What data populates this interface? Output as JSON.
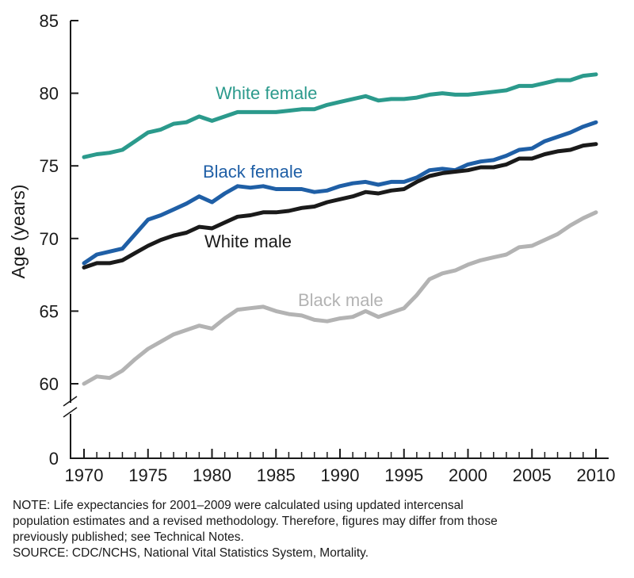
{
  "chart_data": {
    "type": "line",
    "ylabel": "Age (years)",
    "xlabel": "",
    "x_ticks": [
      "1970",
      "1975",
      "1980",
      "1985",
      "1990",
      "1995",
      "2000",
      "2005",
      "2010"
    ],
    "y_ticks": [
      "0",
      "60",
      "65",
      "70",
      "75",
      "80",
      "85"
    ],
    "ylim": [
      60,
      85
    ],
    "y_axis_break": true,
    "grid": false,
    "legend": "inline labels",
    "x": [
      1970,
      1971,
      1972,
      1973,
      1974,
      1975,
      1976,
      1977,
      1978,
      1979,
      1980,
      1981,
      1982,
      1983,
      1984,
      1985,
      1986,
      1987,
      1988,
      1989,
      1990,
      1991,
      1992,
      1993,
      1994,
      1995,
      1996,
      1997,
      1998,
      1999,
      2000,
      2001,
      2002,
      2003,
      2004,
      2005,
      2006,
      2007,
      2008,
      2009,
      2010
    ],
    "series": [
      {
        "name": "White female",
        "color": "#2b9a8c",
        "values": [
          75.6,
          75.8,
          75.9,
          76.1,
          76.7,
          77.3,
          77.5,
          77.9,
          78.0,
          78.4,
          78.1,
          78.4,
          78.7,
          78.7,
          78.7,
          78.7,
          78.8,
          78.9,
          78.9,
          79.2,
          79.4,
          79.6,
          79.8,
          79.5,
          79.6,
          79.6,
          79.7,
          79.9,
          80.0,
          79.9,
          79.9,
          80.0,
          80.1,
          80.2,
          80.5,
          80.5,
          80.7,
          80.9,
          80.9,
          81.2,
          81.3
        ]
      },
      {
        "name": "Black female",
        "color": "#1f5fa6",
        "values": [
          68.3,
          68.9,
          69.1,
          69.3,
          70.3,
          71.3,
          71.6,
          72.0,
          72.4,
          72.9,
          72.5,
          73.1,
          73.6,
          73.5,
          73.6,
          73.4,
          73.4,
          73.4,
          73.2,
          73.3,
          73.6,
          73.8,
          73.9,
          73.7,
          73.9,
          73.9,
          74.2,
          74.7,
          74.8,
          74.7,
          75.1,
          75.3,
          75.4,
          75.7,
          76.1,
          76.2,
          76.7,
          77.0,
          77.3,
          77.7,
          78.0
        ]
      },
      {
        "name": "White male",
        "color": "#1a1a1a",
        "values": [
          68.0,
          68.3,
          68.3,
          68.5,
          69.0,
          69.5,
          69.9,
          70.2,
          70.4,
          70.8,
          70.7,
          71.1,
          71.5,
          71.6,
          71.8,
          71.8,
          71.9,
          72.1,
          72.2,
          72.5,
          72.7,
          72.9,
          73.2,
          73.1,
          73.3,
          73.4,
          73.9,
          74.3,
          74.5,
          74.6,
          74.7,
          74.9,
          74.9,
          75.1,
          75.5,
          75.5,
          75.8,
          76.0,
          76.1,
          76.4,
          76.5
        ]
      },
      {
        "name": "Black male",
        "color": "#b3b3b3",
        "values": [
          60.0,
          60.5,
          60.4,
          60.9,
          61.7,
          62.4,
          62.9,
          63.4,
          63.7,
          64.0,
          63.8,
          64.5,
          65.1,
          65.2,
          65.3,
          65.0,
          64.8,
          64.7,
          64.4,
          64.3,
          64.5,
          64.6,
          65.0,
          64.6,
          64.9,
          65.2,
          66.1,
          67.2,
          67.6,
          67.8,
          68.2,
          68.5,
          68.7,
          68.9,
          69.4,
          69.5,
          69.9,
          70.3,
          70.9,
          71.4,
          71.8
        ]
      }
    ]
  },
  "notes": {
    "line1": "NOTE: Life expectancies for 2001–2009 were calculated using updated intercensal",
    "line2": "population estimates and a revised methodology. Therefore, figures may differ from those",
    "line3": "previously published; see Technical Notes.",
    "source": "SOURCE: CDC/NCHS, National Vital Statistics System, Mortality."
  }
}
